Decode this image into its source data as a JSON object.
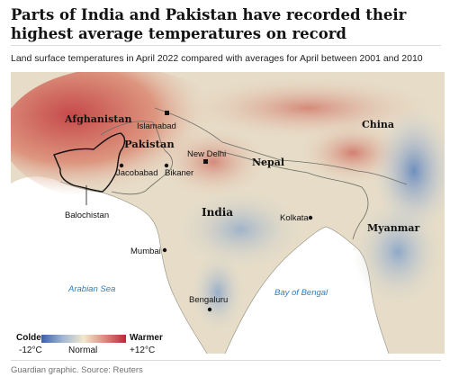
{
  "title": "Parts of India and Pakistan have recorded their highest average temperatures on record",
  "subtitle": "Land surface temperatures in April 2022 compared with averages for April between 2001 and 2010",
  "source": "Guardian graphic. Source: Reuters",
  "colors": {
    "colder": "#3a5fa5",
    "normal": "#f2e8cd",
    "warmer": "#b8283a",
    "sea": "#ffffff",
    "sea_label": "#2f7ec0"
  },
  "legend": {
    "colder_label": "Colder",
    "warmer_label": "Warmer",
    "colder_value": "-12°C",
    "normal_label": "Normal",
    "warmer_value": "+12°C"
  },
  "map": {
    "countries": {
      "afghanistan": "Afghanistan",
      "pakistan": "Pakistan",
      "india": "India",
      "nepal": "Nepal",
      "china": "China",
      "myanmar": "Myanmar"
    },
    "regions": {
      "balochistan": "Balochistan"
    },
    "cities": {
      "islamabad": "Islamabad",
      "new_delhi": "New Delhi",
      "jacobabad": "Jacobabad",
      "bikaner": "Bikaner",
      "kolkata": "Kolkata",
      "mumbai": "Mumbai",
      "bengaluru": "Bengaluru"
    },
    "seas": {
      "arabian_sea": "Arabian Sea",
      "bay_of_bengal": "Bay of Bengal"
    }
  }
}
